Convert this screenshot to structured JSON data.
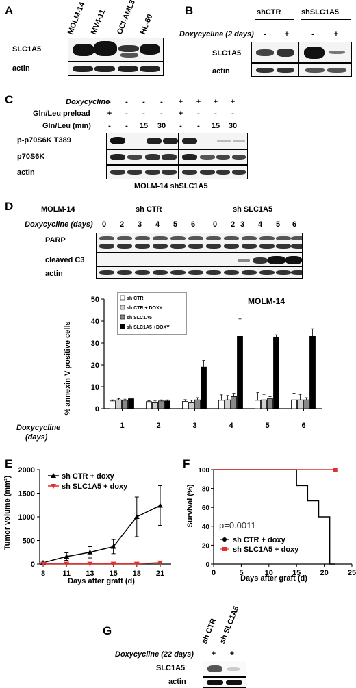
{
  "panels": {
    "A": {
      "label": "A",
      "lanes": [
        "MOLM-14",
        "MV4-11",
        "OCI-AML3",
        "HL-60"
      ],
      "rows": [
        "SLC1A5",
        "actin"
      ]
    },
    "B": {
      "label": "B",
      "groups": [
        "shCTR",
        "shSLC1A5"
      ],
      "condition": "Doxycycline (2 days)",
      "signs": [
        "-",
        "+",
        "-",
        "+"
      ],
      "rows": [
        "SLC1A5",
        "actin"
      ]
    },
    "C": {
      "label": "C",
      "cond_rows": [
        {
          "name": "Doxycycline",
          "italic": true,
          "signs": [
            "-",
            "-",
            "-",
            "-",
            "+",
            "+",
            "+",
            "+"
          ]
        },
        {
          "name": "Gln/Leu preload",
          "italic": false,
          "signs": [
            "+",
            "-",
            "-",
            "-",
            "+",
            "-",
            "-",
            "-"
          ]
        },
        {
          "name": "Gln/Leu (min)",
          "italic": false,
          "signs": [
            "-",
            "-",
            "15",
            "30",
            "-",
            "-",
            "15",
            "30"
          ]
        }
      ],
      "rows": [
        "p-p70S6K T389",
        "p70S6K",
        "actin"
      ],
      "caption": "MOLM-14 shSLC1A5"
    },
    "D": {
      "label": "D",
      "cell_line": "MOLM-14",
      "groups": [
        "sh CTR",
        "sh SLC1A5"
      ],
      "condition": "Doxycycline (days)",
      "days": [
        "0",
        "2",
        "3",
        "4",
        "5",
        "6",
        "0",
        "2",
        "3",
        "4",
        "5",
        "6"
      ],
      "rows": [
        "PARP",
        "cleaved C3",
        "actin"
      ]
    },
    "E": {
      "label": "E"
    },
    "F": {
      "label": "F"
    },
    "G": {
      "label": "G",
      "lanes": [
        "sh CTR",
        "sh SLC1A5"
      ],
      "condition": "Doxycycline (22 days)",
      "signs": [
        "+",
        "+"
      ],
      "rows": [
        "SLC1A5",
        "actin"
      ]
    }
  },
  "chart_data": [
    {
      "type": "bar",
      "title": "MOLM-14",
      "ylabel": "% annexin V positive cells",
      "xlabel": "Doxycycline (days)",
      "categories": [
        "1",
        "2",
        "3",
        "4",
        "5",
        "6"
      ],
      "ylim": [
        0,
        50
      ],
      "yticks": [
        "0",
        "10",
        "20",
        "30",
        "40",
        "50"
      ],
      "series": [
        {
          "name": "sh CTR",
          "color": "#ffffff",
          "values": [
            3.5,
            3.2,
            3.3,
            3.8,
            3.8,
            4.0
          ],
          "errors": [
            0.5,
            0.4,
            0.8,
            2.5,
            3.5,
            3.0
          ]
        },
        {
          "name": "sh CTR + DOXY",
          "color": "#d0d0d0",
          "values": [
            4.0,
            3.0,
            3.0,
            4.0,
            4.0,
            4.0
          ],
          "errors": [
            0.6,
            0.5,
            0.8,
            2.0,
            2.5,
            2.5
          ]
        },
        {
          "name": "sh SLC1A5",
          "color": "#888888",
          "values": [
            3.8,
            3.5,
            4.0,
            5.5,
            4.5,
            4.0
          ],
          "errors": [
            0.5,
            0.5,
            1.0,
            1.5,
            1.0,
            1.0
          ]
        },
        {
          "name": "sh SLC1A5 +DOXY",
          "color": "#000000",
          "values": [
            4.5,
            3.5,
            19.0,
            33.0,
            32.7,
            33.0
          ],
          "errors": [
            0.4,
            0.5,
            3.0,
            8.0,
            1.0,
            3.5
          ]
        }
      ]
    },
    {
      "type": "line",
      "ylabel": "Tumor volume (mm³)",
      "xlabel": "Days after graft (d)",
      "x": [
        8,
        11,
        13,
        15,
        18,
        21
      ],
      "ylim": [
        0,
        2000
      ],
      "yticks": [
        "0",
        "500",
        "1000",
        "1500",
        "2000"
      ],
      "series": [
        {
          "name": "sh CTR + doxy",
          "color": "#000000",
          "marker": "triangle-up",
          "values": [
            30,
            160,
            250,
            370,
            1000,
            1240
          ],
          "errors": [
            10,
            80,
            120,
            150,
            420,
            420
          ]
        },
        {
          "name": "sh SLC1A5 + doxy",
          "color": "#e03030",
          "marker": "triangle-down",
          "values": [
            5,
            5,
            5,
            5,
            5,
            30
          ],
          "errors": [
            0,
            0,
            0,
            0,
            0,
            0
          ]
        }
      ]
    },
    {
      "type": "line",
      "ylabel": "Survival (%)",
      "xlabel": "Days after graft (d)",
      "annotation": "p=0.0011",
      "xlim": [
        0,
        25
      ],
      "xticks": [
        "0",
        "5",
        "10",
        "15",
        "20",
        "25"
      ],
      "ylim": [
        0,
        100
      ],
      "yticks": [
        "0",
        "20",
        "40",
        "60",
        "80",
        "100"
      ],
      "series": [
        {
          "name": "sh CTR + doxy",
          "color": "#000000",
          "steps": [
            [
              0,
              100
            ],
            [
              15,
              100
            ],
            [
              15,
              83
            ],
            [
              17,
              83
            ],
            [
              17,
              67
            ],
            [
              19,
              67
            ],
            [
              19,
              50
            ],
            [
              21,
              50
            ],
            [
              21,
              0
            ],
            [
              22,
              0
            ]
          ]
        },
        {
          "name": "sh SLC1A5 + doxy",
          "color": "#e03030",
          "steps": [
            [
              0,
              100
            ],
            [
              22,
              100
            ]
          ]
        }
      ]
    }
  ]
}
